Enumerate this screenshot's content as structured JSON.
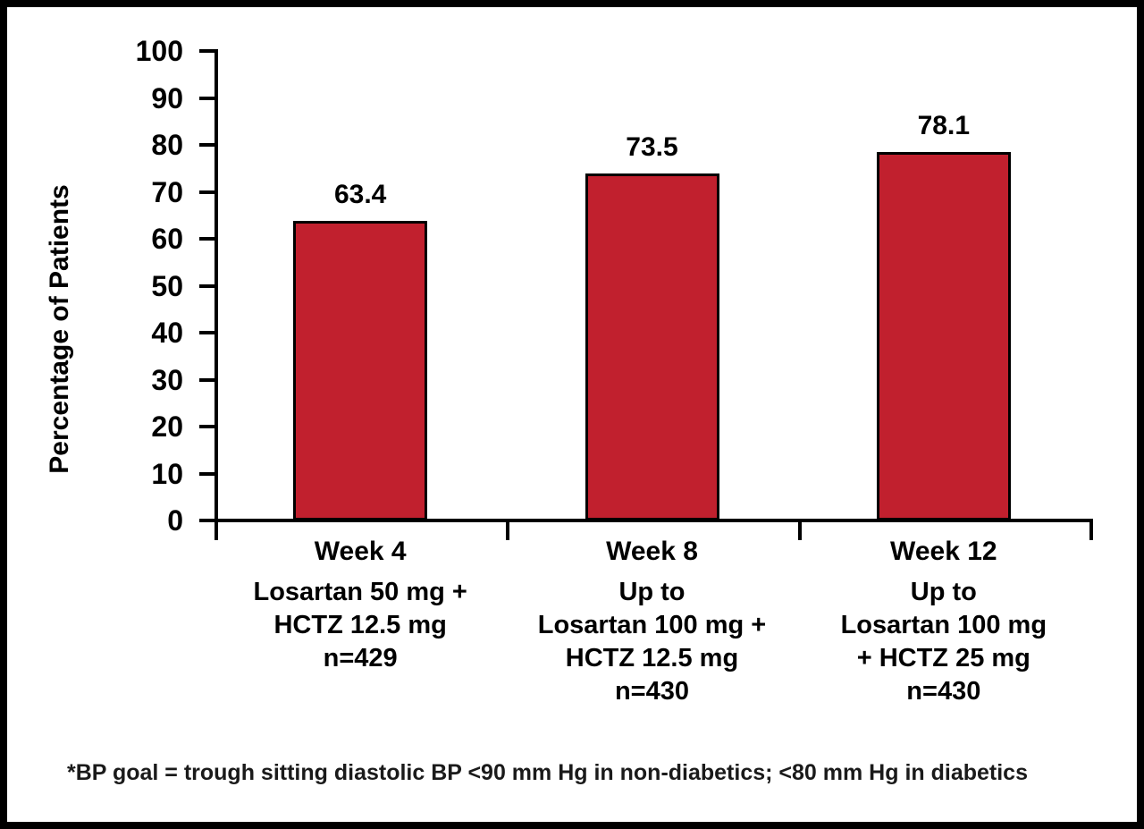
{
  "chart_data": {
    "type": "bar",
    "title": "",
    "xlabel": "",
    "ylabel": "Percentage of Patients",
    "ylim": [
      0,
      100
    ],
    "ytick_interval": 10,
    "grid": false,
    "legend": "none",
    "bar_color": "#C1202E",
    "bar_border_color": "#000000",
    "categories": [
      "Week 4",
      "Week 8",
      "Week 12"
    ],
    "category_sublabels": [
      [
        "Losartan 50 mg +",
        "HCTZ 12.5 mg",
        "n=429"
      ],
      [
        "Up to",
        "Losartan 100 mg +",
        "HCTZ 12.5 mg",
        "n=430"
      ],
      [
        "Up to",
        "Losartan 100 mg",
        "+ HCTZ 25 mg",
        "n=430"
      ]
    ],
    "values": [
      63.4,
      73.5,
      78.1
    ],
    "value_labels": [
      "63.4",
      "73.5",
      "78.1"
    ]
  },
  "footnote": "*BP goal = trough sitting diastolic BP <90 mm Hg in non-diabetics; <80 mm Hg in diabetics"
}
